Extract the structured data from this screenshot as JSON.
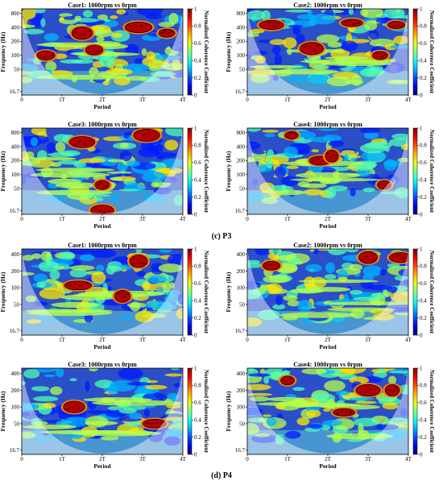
{
  "sections": [
    {
      "caption_letter": "(c)",
      "caption_name": "P3",
      "panels": [
        {
          "title": "Case1: 1000rpm vs 0rpm"
        },
        {
          "title": "Case2: 1000rpm vs 0rpm"
        },
        {
          "title": "Case3: 1000rpm vs 0rpm"
        },
        {
          "title": "Case4: 1000rpm vs 0rpm"
        }
      ]
    },
    {
      "caption_letter": "(d)",
      "caption_name": "P4",
      "panels": [
        {
          "title": "Case1: 1000rpm vs 0rpm"
        },
        {
          "title": "Case2: 1000rpm vs 0rpm"
        },
        {
          "title": "Case3: 1000rpm vs 0rpm"
        },
        {
          "title": "Case4: 1000rpm vs 0rpm"
        }
      ]
    }
  ],
  "chart_data": [
    {
      "type": "heatmap",
      "group": "P3",
      "title": "Case1: 1000rpm vs 0rpm",
      "xlabel": "Period",
      "ylabel": "Frequency (Hz)",
      "x_ticks": [
        "0",
        "1T",
        "2T",
        "3T",
        "4T"
      ],
      "y_ticks": [
        "800",
        "400",
        "200",
        "100",
        "50",
        "16.7"
      ],
      "y_scale": "log",
      "colorbar_label": "Normalized Coherence Coefficient",
      "colorbar_ticks": [
        "0",
        "0.2",
        "0.4",
        "0.6",
        "0.8",
        "1"
      ],
      "colorbar_range": [
        0,
        1
      ],
      "high_coherence_regions": [
        {
          "period": 0.6,
          "frequency": 100
        },
        {
          "period": 1.5,
          "frequency": 300
        },
        {
          "period": 1.8,
          "frequency": 130
        },
        {
          "period": 2.9,
          "frequency": 400
        },
        {
          "period": 3.6,
          "frequency": 300
        }
      ]
    },
    {
      "type": "heatmap",
      "group": "P3",
      "title": "Case2: 1000rpm vs 0rpm",
      "xlabel": "Period",
      "ylabel": "Frequency (Hz)",
      "x_ticks": [
        "0",
        "1T",
        "2T",
        "3T",
        "4T"
      ],
      "y_ticks": [
        "800",
        "400",
        "200",
        "100",
        "50",
        "16.7"
      ],
      "y_scale": "log",
      "colorbar_label": "Normalized Coherence Coefficient",
      "colorbar_ticks": [
        "0",
        "0.2",
        "0.4",
        "0.6",
        "0.8",
        "1"
      ],
      "colorbar_range": [
        0,
        1
      ],
      "high_coherence_regions": [
        {
          "period": 0.6,
          "frequency": 450
        },
        {
          "period": 1.6,
          "frequency": 140
        },
        {
          "period": 2.6,
          "frequency": 500
        },
        {
          "period": 3.7,
          "frequency": 450
        },
        {
          "period": 3.3,
          "frequency": 100
        }
      ]
    },
    {
      "type": "heatmap",
      "group": "P3",
      "title": "Case3: 1000rpm vs 0rpm",
      "xlabel": "Period",
      "ylabel": "Frequency (Hz)",
      "x_ticks": [
        "0",
        "1T",
        "2T",
        "3T",
        "4T"
      ],
      "y_ticks": [
        "800",
        "400",
        "200",
        "100",
        "50",
        "16.7"
      ],
      "y_scale": "log",
      "colorbar_label": "Normalized Coherence Coefficient",
      "colorbar_ticks": [
        "0",
        "0.2",
        "0.4",
        "0.6",
        "0.8",
        "1"
      ],
      "colorbar_range": [
        0,
        1
      ],
      "high_coherence_regions": [
        {
          "period": 2.0,
          "frequency": 60
        },
        {
          "period": 3.1,
          "frequency": 700
        },
        {
          "period": 1.5,
          "frequency": 500
        },
        {
          "period": 2.0,
          "frequency": 17
        }
      ]
    },
    {
      "type": "heatmap",
      "group": "P3",
      "title": "Case4: 1000rpm vs 0rpm",
      "xlabel": "Period",
      "ylabel": "Frequency (Hz)",
      "x_ticks": [
        "0",
        "1T",
        "2T",
        "3T",
        "4T"
      ],
      "y_ticks": [
        "800",
        "400",
        "200",
        "100",
        "50",
        "16.7"
      ],
      "y_scale": "log",
      "colorbar_label": "Normalized Coherence Coefficient",
      "colorbar_ticks": [
        "0",
        "0.2",
        "0.4",
        "0.6",
        "0.8",
        "1"
      ],
      "colorbar_range": [
        0,
        1
      ],
      "high_coherence_regions": [
        {
          "period": 1.8,
          "frequency": 200
        },
        {
          "period": 2.1,
          "frequency": 250
        },
        {
          "period": 3.4,
          "frequency": 60
        },
        {
          "period": 1.1,
          "frequency": 700
        }
      ]
    },
    {
      "type": "heatmap",
      "group": "P4",
      "title": "Case1: 1000rpm vs 0rpm",
      "xlabel": "Period",
      "ylabel": "Frequency (Hz)",
      "x_ticks": [
        "0",
        "1T",
        "2T",
        "3T",
        "4T"
      ],
      "y_ticks": [
        "400",
        "200",
        "100",
        "50",
        "16.7"
      ],
      "y_scale": "log",
      "colorbar_label": "Normalized Coherence Coefficient",
      "colorbar_ticks": [
        "0",
        "0.2",
        "0.4",
        "0.6",
        "0.8",
        "1"
      ],
      "colorbar_range": [
        0,
        1
      ],
      "high_coherence_regions": [
        {
          "period": 1.4,
          "frequency": 110
        },
        {
          "period": 2.5,
          "frequency": 70
        },
        {
          "period": 2.9,
          "frequency": 300
        }
      ]
    },
    {
      "type": "heatmap",
      "group": "P4",
      "title": "Case2: 1000rpm vs 0rpm",
      "xlabel": "Period",
      "ylabel": "Frequency (Hz)",
      "x_ticks": [
        "0",
        "1T",
        "2T",
        "3T",
        "4T"
      ],
      "y_ticks": [
        "400",
        "200",
        "100",
        "50",
        "16.7"
      ],
      "y_scale": "log",
      "colorbar_label": "Normalized Coherence Coefficient",
      "colorbar_ticks": [
        "0",
        "0.2",
        "0.4",
        "0.6",
        "0.8",
        "1"
      ],
      "colorbar_range": [
        0,
        1
      ],
      "high_coherence_regions": [
        {
          "period": 0.6,
          "frequency": 250
        },
        {
          "period": 3.0,
          "frequency": 350
        },
        {
          "period": 3.8,
          "frequency": 350
        }
      ]
    },
    {
      "type": "heatmap",
      "group": "P4",
      "title": "Case3: 1000rpm vs 0rpm",
      "xlabel": "Period",
      "ylabel": "Frequency (Hz)",
      "x_ticks": [
        "0",
        "1T",
        "2T",
        "3T",
        "4T"
      ],
      "y_ticks": [
        "400",
        "200",
        "100",
        "50",
        "16.7"
      ],
      "y_scale": "log",
      "colorbar_label": "Normalized Coherence Coefficient",
      "colorbar_ticks": [
        "0",
        "0.2",
        "0.4",
        "0.6",
        "0.8",
        "1"
      ],
      "colorbar_range": [
        0,
        1
      ],
      "high_coherence_regions": [
        {
          "period": 3.3,
          "frequency": 50
        },
        {
          "period": 1.3,
          "frequency": 100
        }
      ]
    },
    {
      "type": "heatmap",
      "group": "P4",
      "title": "Case4: 1000rpm vs 0rpm",
      "xlabel": "Period",
      "ylabel": "Frequency (Hz)",
      "x_ticks": [
        "0",
        "1T",
        "2T",
        "3T",
        "4T"
      ],
      "y_ticks": [
        "400",
        "200",
        "100",
        "50",
        "16.7"
      ],
      "y_scale": "log",
      "colorbar_label": "Normalized Coherence Coefficient",
      "colorbar_ticks": [
        "0",
        "0.2",
        "0.4",
        "0.6",
        "0.8",
        "1"
      ],
      "colorbar_range": [
        0,
        1
      ],
      "high_coherence_regions": [
        {
          "period": 1.0,
          "frequency": 300
        },
        {
          "period": 3.0,
          "frequency": 200
        },
        {
          "period": 3.6,
          "frequency": 200
        },
        {
          "period": 2.4,
          "frequency": 80
        }
      ]
    }
  ]
}
